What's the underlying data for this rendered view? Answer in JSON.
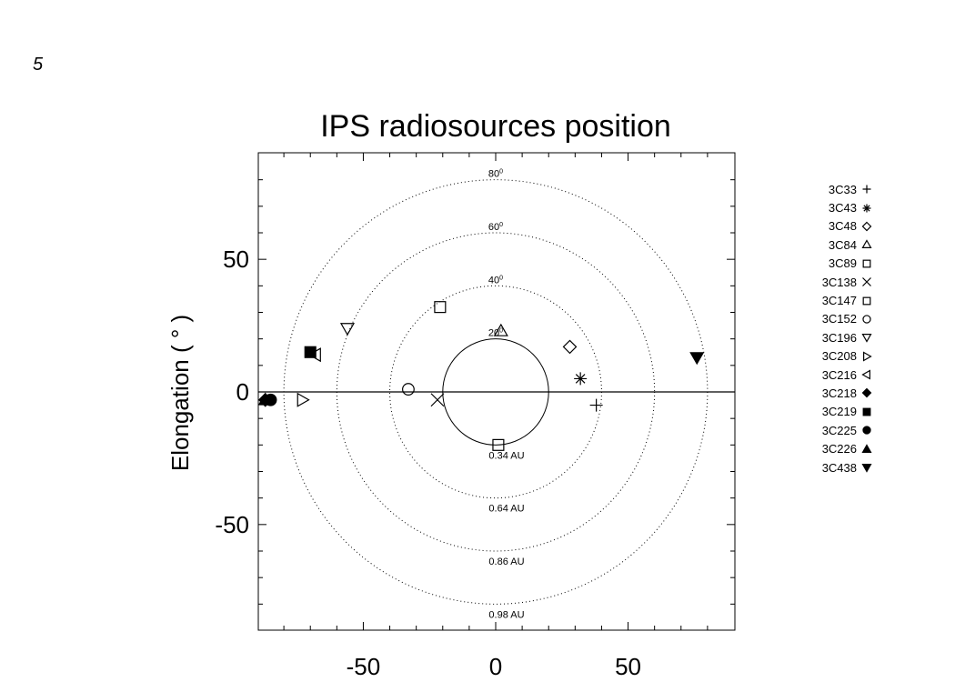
{
  "page_number": "5",
  "chart_data": {
    "type": "scatter",
    "title": "IPS radiosources position",
    "xlabel": "",
    "ylabel": "Elongation ( ° )",
    "xlim": [
      -90,
      90
    ],
    "ylim": [
      -90,
      90
    ],
    "x_ticks": [
      -50,
      0,
      50
    ],
    "y_ticks": [
      -50,
      0,
      50
    ],
    "grid": false,
    "legend_position": "right",
    "rings": [
      {
        "radius": 20,
        "angle_label": "20",
        "au_label": "0.34 AU",
        "style": "solid"
      },
      {
        "radius": 40,
        "angle_label": "40",
        "au_label": "0.64 AU",
        "style": "dotted"
      },
      {
        "radius": 60,
        "angle_label": "60",
        "au_label": "0.86 AU",
        "style": "dotted"
      },
      {
        "radius": 80,
        "angle_label": "80",
        "au_label": "0.98 AU",
        "style": "dotted"
      }
    ],
    "series": [
      {
        "name": "3C33",
        "symbol": "plus",
        "x": 38,
        "y": -5
      },
      {
        "name": "3C43",
        "symbol": "asterisk",
        "x": 32,
        "y": 5
      },
      {
        "name": "3C48",
        "symbol": "diamond",
        "x": 28,
        "y": 17
      },
      {
        "name": "3C84",
        "symbol": "triangle-up",
        "x": 2,
        "y": 23
      },
      {
        "name": "3C89",
        "symbol": "square",
        "x": 1,
        "y": -20
      },
      {
        "name": "3C138",
        "symbol": "cross",
        "x": -22,
        "y": -3
      },
      {
        "name": "3C147",
        "symbol": "square",
        "x": -21,
        "y": 32
      },
      {
        "name": "3C152",
        "symbol": "circle",
        "x": -33,
        "y": 1
      },
      {
        "name": "3C196",
        "symbol": "triangle-down",
        "x": -56,
        "y": 24
      },
      {
        "name": "3C208",
        "symbol": "triangle-right",
        "x": -73,
        "y": -3
      },
      {
        "name": "3C216",
        "symbol": "triangle-left",
        "x": -68,
        "y": 14
      },
      {
        "name": "3C218",
        "symbol": "diamond-filled",
        "x": -87,
        "y": -3
      },
      {
        "name": "3C219",
        "symbol": "square-filled",
        "x": -70,
        "y": 15
      },
      {
        "name": "3C225",
        "symbol": "circle-filled",
        "x": -85,
        "y": -3
      },
      {
        "name": "3C226",
        "symbol": "triangle-up-filled",
        "x": -87,
        "y": -3
      },
      {
        "name": "3C438",
        "symbol": "triangle-down-filled",
        "x": 76,
        "y": 13
      }
    ]
  }
}
